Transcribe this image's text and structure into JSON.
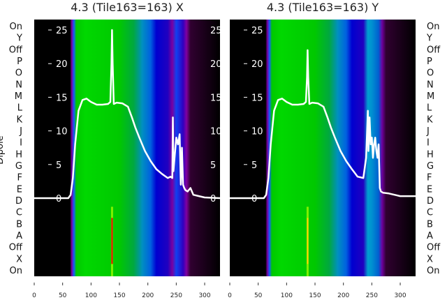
{
  "chart_data": {
    "type": "heatmap",
    "ylabel_left": "Dipole",
    "category_labels": [
      "On",
      "Y",
      "Off",
      "P",
      "O",
      "N",
      "M",
      "L",
      "K",
      "J",
      "I",
      "H",
      "G",
      "F",
      "E",
      "D",
      "C",
      "B",
      "A",
      "Off",
      "X",
      "On"
    ],
    "x_ticks": [
      0,
      50,
      100,
      150,
      200,
      250,
      300
    ],
    "xlim": [
      0,
      327
    ],
    "overlay_ylim": [
      -6.5,
      26.5
    ],
    "overlay_y_ticks": [
      0,
      5,
      10,
      15,
      20,
      25
    ],
    "panels": [
      {
        "title": "4.3 (Tile163=163) X",
        "band_stops": [
          [
            0,
            "#000000"
          ],
          [
            63,
            "#000000"
          ],
          [
            66,
            "#7a00a0"
          ],
          [
            70,
            "#1060ff"
          ],
          [
            74,
            "#00c800"
          ],
          [
            90,
            "#00d800"
          ],
          [
            150,
            "#00c800"
          ],
          [
            175,
            "#00a840"
          ],
          [
            190,
            "#0090c0"
          ],
          [
            205,
            "#0060e0"
          ],
          [
            215,
            "#0000d0"
          ],
          [
            235,
            "#2000c0"
          ],
          [
            243,
            "#7a00a0"
          ],
          [
            250,
            "#1040f0"
          ],
          [
            262,
            "#3000c0"
          ],
          [
            268,
            "#8000a0"
          ],
          [
            275,
            "#300030"
          ],
          [
            310,
            "#100010"
          ],
          [
            327,
            "#000000"
          ]
        ],
        "line": {
          "x": [
            0,
            60,
            64,
            68,
            72,
            78,
            85,
            92,
            100,
            110,
            120,
            130,
            134,
            136,
            137,
            138,
            140,
            145,
            155,
            165,
            172,
            178,
            185,
            195,
            205,
            215,
            225,
            235,
            240,
            243,
            244,
            245,
            247,
            250,
            253,
            256,
            258,
            260,
            262,
            264,
            266,
            270,
            275,
            280,
            290,
            300,
            327
          ],
          "y": [
            0,
            0,
            0.5,
            3,
            8,
            13,
            14.6,
            14.8,
            14.3,
            13.9,
            13.9,
            14,
            14.3,
            20,
            25,
            20,
            14,
            14.2,
            14.1,
            13.6,
            12,
            10.5,
            9,
            7,
            5.5,
            4.3,
            3.6,
            3,
            3.2,
            3,
            12,
            4,
            6,
            9,
            8,
            9.5,
            2,
            7.5,
            2,
            1.5,
            1.2,
            1,
            1.5,
            0.5,
            0.3,
            0.1,
            0
          ]
        },
        "markers": [
          {
            "x": 137,
            "from": "B",
            "to": "X",
            "color": "#e00000"
          }
        ]
      },
      {
        "title": "4.3 (Tile163=163) Y",
        "band_stops": [
          [
            0,
            "#000000"
          ],
          [
            63,
            "#000000"
          ],
          [
            66,
            "#7a00a0"
          ],
          [
            70,
            "#1060ff"
          ],
          [
            74,
            "#00c800"
          ],
          [
            90,
            "#00d800"
          ],
          [
            150,
            "#00c800"
          ],
          [
            175,
            "#00a840"
          ],
          [
            190,
            "#0090c0"
          ],
          [
            205,
            "#0060e0"
          ],
          [
            215,
            "#0000d0"
          ],
          [
            235,
            "#2000c0"
          ],
          [
            243,
            "#00a0d0"
          ],
          [
            250,
            "#0090d0"
          ],
          [
            262,
            "#0060d0"
          ],
          [
            268,
            "#7000a0"
          ],
          [
            275,
            "#300030"
          ],
          [
            310,
            "#100010"
          ],
          [
            327,
            "#000000"
          ]
        ],
        "line": {
          "x": [
            0,
            60,
            64,
            68,
            72,
            78,
            85,
            92,
            100,
            110,
            120,
            130,
            134,
            136,
            137,
            138,
            140,
            145,
            155,
            165,
            172,
            178,
            185,
            195,
            205,
            215,
            225,
            235,
            240,
            243,
            244,
            246,
            248,
            250,
            252,
            254,
            256,
            258,
            260,
            262,
            264,
            266,
            270,
            280,
            290,
            300,
            327
          ],
          "y": [
            0,
            0,
            0.5,
            3,
            8,
            13,
            14.6,
            14.8,
            14.3,
            13.9,
            13.9,
            14,
            14.3,
            18,
            22,
            18,
            14,
            14.2,
            14.1,
            13.6,
            12,
            10.5,
            9,
            7,
            5.5,
            4.3,
            3.2,
            3,
            6,
            13,
            7,
            12,
            8,
            9,
            6,
            8,
            9,
            7,
            6,
            8,
            1.5,
            1,
            0.8,
            0.7,
            0.5,
            0.3,
            0.3
          ]
        },
        "markers": [
          {
            "x": 137,
            "from": "B",
            "to": "X",
            "color": "#ffd000"
          }
        ]
      }
    ]
  }
}
